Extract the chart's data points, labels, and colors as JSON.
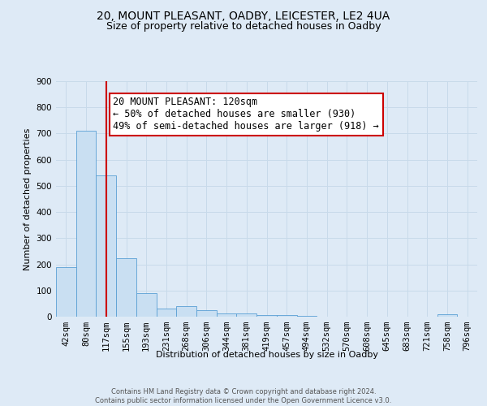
{
  "title": "20, MOUNT PLEASANT, OADBY, LEICESTER, LE2 4UA",
  "subtitle": "Size of property relative to detached houses in Oadby",
  "xlabel": "Distribution of detached houses by size in Oadby",
  "ylabel": "Number of detached properties",
  "footer_line1": "Contains HM Land Registry data © Crown copyright and database right 2024.",
  "footer_line2": "Contains public sector information licensed under the Open Government Licence v3.0.",
  "bin_labels": [
    "42sqm",
    "80sqm",
    "117sqm",
    "155sqm",
    "193sqm",
    "231sqm",
    "268sqm",
    "306sqm",
    "344sqm",
    "381sqm",
    "419sqm",
    "457sqm",
    "494sqm",
    "532sqm",
    "570sqm",
    "608sqm",
    "645sqm",
    "683sqm",
    "721sqm",
    "758sqm",
    "796sqm"
  ],
  "bar_values": [
    190,
    710,
    540,
    225,
    90,
    32,
    40,
    26,
    13,
    12,
    5,
    5,
    3,
    0,
    0,
    0,
    0,
    0,
    0,
    8,
    0
  ],
  "bar_color": "#c9dff2",
  "bar_edge_color": "#5a9fd4",
  "vline_x_index": 2,
  "vline_color": "#cc0000",
  "annotation_box_text": "20 MOUNT PLEASANT: 120sqm\n← 50% of detached houses are smaller (930)\n49% of semi-detached houses are larger (918) →",
  "annotation_box_color": "#cc0000",
  "annotation_box_bg": "#ffffff",
  "ylim": [
    0,
    900
  ],
  "yticks": [
    0,
    100,
    200,
    300,
    400,
    500,
    600,
    700,
    800,
    900
  ],
  "grid_color": "#c8daea",
  "bg_color": "#deeaf6",
  "title_fontsize": 10,
  "subtitle_fontsize": 9,
  "annotation_fontsize": 8.5,
  "axis_label_fontsize": 8,
  "tick_fontsize": 7.5
}
